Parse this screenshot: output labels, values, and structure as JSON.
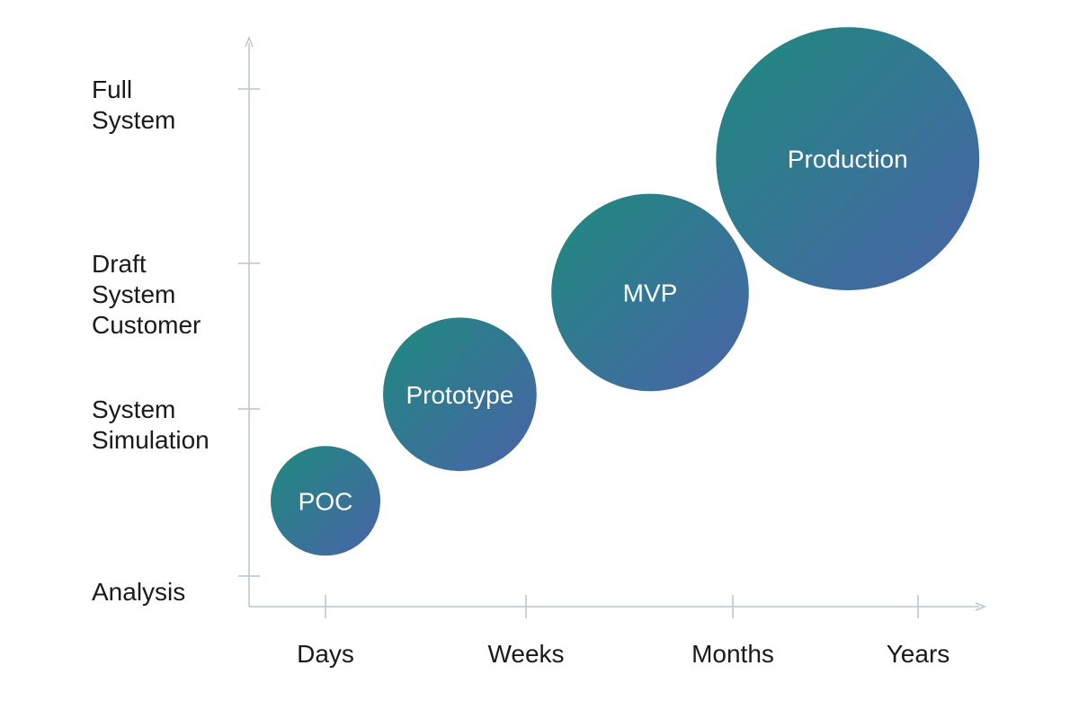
{
  "chart_data": {
    "type": "scatter",
    "x_categories": [
      "Days",
      "Weeks",
      "Months",
      "Years"
    ],
    "y_levels": [
      [
        "Analysis"
      ],
      [
        "System",
        "Simulation"
      ],
      [
        "Draft",
        "System",
        "Customer"
      ],
      [
        "Full",
        "System"
      ]
    ],
    "points": [
      {
        "label": "POC",
        "x": 0,
        "y": 0.45,
        "size": 1.0
      },
      {
        "label": "Prototype",
        "x": 0.67,
        "y": 1.1,
        "size": 1.4
      },
      {
        "label": "MVP",
        "x": 1.6,
        "y": 1.8,
        "size": 1.8
      },
      {
        "label": "Production",
        "x": 2.62,
        "y": 2.6,
        "size": 2.4
      }
    ],
    "colors": {
      "start": "#1e8a7e",
      "end": "#4a63a8",
      "axis": "#b8c4cf"
    }
  }
}
